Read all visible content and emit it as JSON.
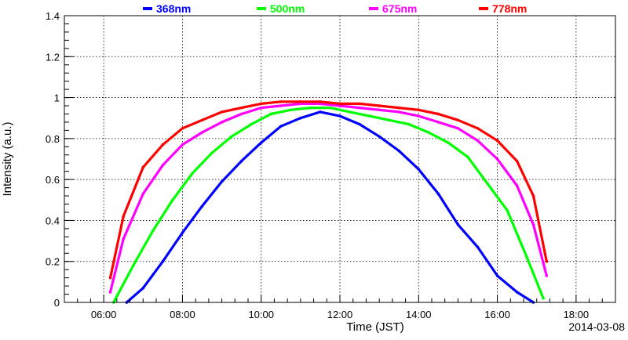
{
  "chart_data": {
    "type": "line",
    "title": "",
    "xlabel": "Time (JST)",
    "ylabel": "Intensity (a.u.)",
    "date_label": "2014-03-08",
    "xlim": [
      "05:00",
      "19:00"
    ],
    "ylim": [
      0,
      1.4
    ],
    "grid": true,
    "legend_position": "top",
    "xticks": [
      "06:00",
      "08:00",
      "10:00",
      "12:00",
      "14:00",
      "16:00",
      "18:00"
    ],
    "yticks": [
      "0",
      "0.2",
      "0.4",
      "0.6",
      "0.8",
      "1",
      "1.2",
      "1.4"
    ],
    "series": [
      {
        "name": "368nm",
        "color": "#0000ff",
        "x": [
          "06:35",
          "07:00",
          "07:30",
          "08:00",
          "08:30",
          "09:00",
          "09:30",
          "10:00",
          "10:30",
          "11:00",
          "11:30",
          "12:00",
          "12:30",
          "13:00",
          "13:30",
          "14:00",
          "14:30",
          "15:00",
          "15:30",
          "16:00",
          "16:30",
          "16:55"
        ],
        "y": [
          0.0,
          0.07,
          0.2,
          0.34,
          0.47,
          0.59,
          0.69,
          0.78,
          0.86,
          0.9,
          0.93,
          0.91,
          0.87,
          0.81,
          0.74,
          0.65,
          0.53,
          0.38,
          0.27,
          0.13,
          0.05,
          0.0
        ]
      },
      {
        "name": "500nm",
        "color": "#00ff00",
        "x": [
          "06:15",
          "06:45",
          "07:15",
          "07:45",
          "08:15",
          "08:45",
          "09:15",
          "09:45",
          "10:15",
          "10:45",
          "11:15",
          "11:45",
          "12:15",
          "12:45",
          "13:15",
          "13:45",
          "14:15",
          "14:45",
          "15:15",
          "15:45",
          "16:15",
          "16:45",
          "17:10"
        ],
        "y": [
          0.0,
          0.18,
          0.35,
          0.5,
          0.63,
          0.73,
          0.81,
          0.87,
          0.92,
          0.94,
          0.95,
          0.95,
          0.93,
          0.91,
          0.89,
          0.87,
          0.83,
          0.78,
          0.71,
          0.58,
          0.45,
          0.22,
          0.02
        ]
      },
      {
        "name": "675nm",
        "color": "#ff00ff",
        "x": [
          "06:10",
          "06:30",
          "07:00",
          "07:30",
          "08:00",
          "08:30",
          "09:00",
          "09:30",
          "10:00",
          "10:30",
          "11:00",
          "11:30",
          "12:00",
          "12:30",
          "13:00",
          "13:30",
          "14:00",
          "14:30",
          "15:00",
          "15:30",
          "16:00",
          "16:30",
          "16:55",
          "17:15"
        ],
        "y": [
          0.05,
          0.31,
          0.53,
          0.67,
          0.77,
          0.83,
          0.88,
          0.92,
          0.95,
          0.96,
          0.97,
          0.97,
          0.96,
          0.95,
          0.94,
          0.93,
          0.91,
          0.88,
          0.85,
          0.79,
          0.7,
          0.57,
          0.38,
          0.13
        ]
      },
      {
        "name": "778nm",
        "color": "#ff0000",
        "x": [
          "06:10",
          "06:30",
          "07:00",
          "07:30",
          "08:00",
          "08:30",
          "09:00",
          "09:30",
          "10:00",
          "10:30",
          "11:00",
          "11:30",
          "12:00",
          "12:30",
          "13:00",
          "13:30",
          "14:00",
          "14:30",
          "15:00",
          "15:30",
          "16:00",
          "16:30",
          "16:55",
          "17:15"
        ],
        "y": [
          0.12,
          0.42,
          0.66,
          0.77,
          0.85,
          0.89,
          0.93,
          0.95,
          0.97,
          0.98,
          0.98,
          0.98,
          0.97,
          0.97,
          0.96,
          0.95,
          0.94,
          0.92,
          0.89,
          0.85,
          0.79,
          0.69,
          0.52,
          0.2
        ]
      }
    ]
  }
}
